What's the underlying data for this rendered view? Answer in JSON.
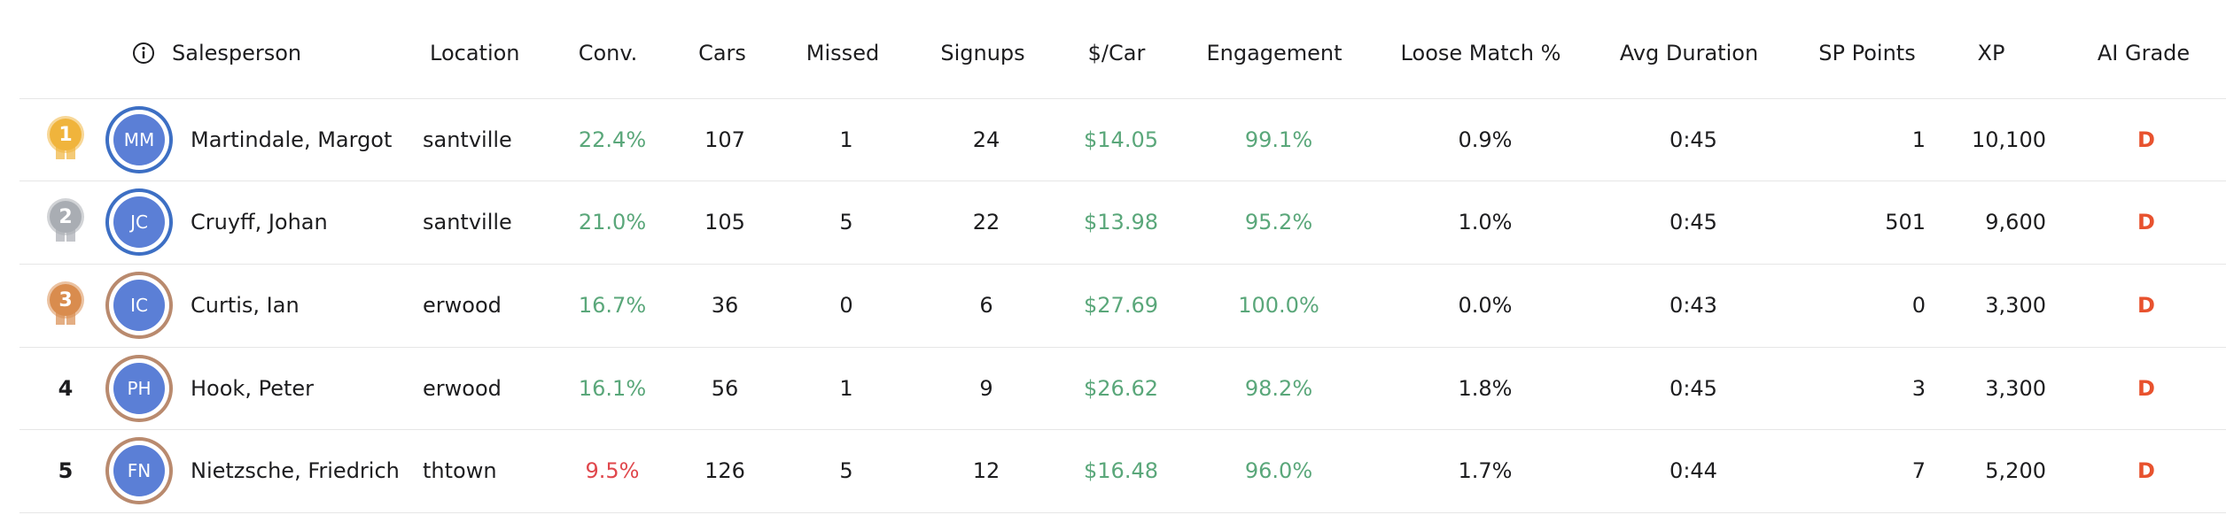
{
  "header": [
    "Salesperson",
    "Location",
    "Conv.",
    "Cars",
    "Missed",
    "Signups",
    "$/Car",
    "Engagement",
    "Loose Match %",
    "Avg Duration",
    "SP Points",
    "XP",
    "AI Grade"
  ],
  "rows": [
    {
      "rank": "1",
      "initials": "MM",
      "name": "Martindale, Margot",
      "conv_color": "#5aa77a",
      "cells": [
        "santville",
        "22.4%",
        "107",
        "1",
        "24",
        "$14.05",
        "99.1%",
        "0.9%",
        "0:45",
        "1",
        "10,100",
        "D"
      ]
    },
    {
      "rank": "2",
      "initials": "JC",
      "name": "Cruyff, Johan",
      "conv_color": "#5aa77a",
      "cells": [
        "santville",
        "21.0%",
        "105",
        "5",
        "22",
        "$13.98",
        "95.2%",
        "1.0%",
        "0:45",
        "501",
        "9,600",
        "D"
      ]
    },
    {
      "rank": "3",
      "initials": "IC",
      "name": "Curtis, Ian",
      "conv_color": "#5aa77a",
      "cells": [
        "erwood",
        "16.7%",
        "36",
        "0",
        "6",
        "$27.69",
        "100.0%",
        "0.0%",
        "0:43",
        "0",
        "3,300",
        "D"
      ]
    },
    {
      "rank": "4",
      "initials": "PH",
      "name": "Hook, Peter",
      "conv_color": "#5aa77a",
      "cells": [
        "erwood",
        "16.1%",
        "56",
        "1",
        "9",
        "$26.62",
        "98.2%",
        "1.8%",
        "0:45",
        "3",
        "3,300",
        "D"
      ]
    },
    {
      "rank": "5",
      "initials": "FN",
      "name": "Nietzsche, Friedrich",
      "conv_color": "#e0474c",
      "cells": [
        "thtown",
        "9.5%",
        "126",
        "5",
        "12",
        "$16.48",
        "96.0%",
        "1.7%",
        "0:44",
        "7",
        "5,200",
        "D"
      ]
    }
  ]
}
